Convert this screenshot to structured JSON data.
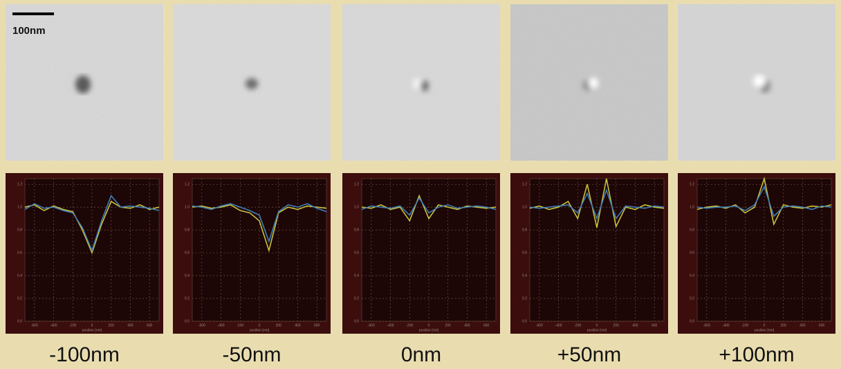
{
  "scale_bar": "100nm",
  "chart_data": [
    {
      "type": "line",
      "title": "-100nm",
      "xlabel": "position [nm]",
      "x": [
        -700,
        -600,
        -500,
        -400,
        -300,
        -200,
        -100,
        0,
        100,
        200,
        300,
        400,
        500,
        600,
        700
      ],
      "series": [
        {
          "color": "#c9c23a",
          "values": [
            1.0,
            1.02,
            0.97,
            1.01,
            0.98,
            0.96,
            0.8,
            0.6,
            0.85,
            1.05,
            1.0,
            0.99,
            1.02,
            0.98,
            1.0
          ]
        },
        {
          "color": "#3f7fb8",
          "values": [
            0.98,
            1.03,
            0.99,
            1.0,
            0.97,
            0.95,
            0.82,
            0.62,
            0.88,
            1.1,
            1.0,
            1.01,
            1.0,
            0.99,
            0.97
          ]
        }
      ],
      "xlim": [
        -700,
        700
      ],
      "ylim": [
        0,
        1.25
      ],
      "xticks": [
        -600,
        -400,
        -200,
        0,
        200,
        400,
        600
      ],
      "yticks": [
        {
          "value": 0,
          "label": "0.0"
        },
        0.2,
        0.4,
        0.6,
        0.8,
        {
          "value": 1,
          "label": "1.0"
        },
        1.2
      ],
      "grid": true
    },
    {
      "type": "line",
      "title": "-50nm",
      "xlabel": "position [nm]",
      "x": [
        -700,
        -600,
        -500,
        -400,
        -300,
        -200,
        -100,
        0,
        100,
        200,
        300,
        400,
        500,
        600,
        700
      ],
      "series": [
        {
          "color": "#c9c23a",
          "values": [
            1.0,
            1.01,
            0.99,
            1.0,
            1.02,
            0.97,
            0.95,
            0.88,
            0.62,
            0.95,
            1.0,
            0.98,
            1.01,
            1.0,
            0.99
          ]
        },
        {
          "color": "#3f7fb8",
          "values": [
            1.01,
            1.0,
            0.98,
            1.01,
            1.03,
            1.0,
            0.97,
            0.93,
            0.7,
            0.96,
            1.02,
            1.0,
            1.03,
            0.99,
            0.96
          ]
        }
      ],
      "xlim": [
        -700,
        700
      ],
      "ylim": [
        0,
        1.25
      ],
      "xticks": [
        -600,
        -400,
        -200,
        0,
        200,
        400,
        600
      ],
      "yticks": [
        {
          "value": 0,
          "label": "0.0"
        },
        0.2,
        0.4,
        0.6,
        0.8,
        {
          "value": 1,
          "label": "1.0"
        },
        1.2
      ],
      "grid": true
    },
    {
      "type": "line",
      "title": "0nm",
      "xlabel": "position [nm]",
      "x": [
        -700,
        -600,
        -500,
        -400,
        -300,
        -200,
        -100,
        0,
        100,
        200,
        300,
        400,
        500,
        600,
        700
      ],
      "series": [
        {
          "color": "#c9c23a",
          "values": [
            1.0,
            0.99,
            1.02,
            0.98,
            1.0,
            0.88,
            1.1,
            0.9,
            1.02,
            1.0,
            0.98,
            1.01,
            1.0,
            0.99,
            1.0
          ]
        },
        {
          "color": "#3f7fb8",
          "values": [
            0.98,
            1.01,
            1.0,
            0.99,
            1.01,
            0.93,
            1.08,
            0.95,
            1.0,
            1.02,
            0.99,
            1.0,
            1.01,
            1.0,
            0.98
          ]
        }
      ],
      "xlim": [
        -700,
        700
      ],
      "ylim": [
        0,
        1.25
      ],
      "xticks": [
        -600,
        -400,
        -200,
        0,
        200,
        400,
        600
      ],
      "yticks": [
        {
          "value": 0,
          "label": "0.0"
        },
        0.2,
        0.4,
        0.6,
        0.8,
        {
          "value": 1,
          "label": "1.0"
        },
        1.2
      ],
      "grid": true
    },
    {
      "type": "line",
      "title": "+50nm",
      "xlabel": "position [nm]",
      "x": [
        -700,
        -600,
        -500,
        -400,
        -300,
        -200,
        -100,
        0,
        100,
        200,
        300,
        400,
        500,
        600,
        700
      ],
      "series": [
        {
          "color": "#c9c23a",
          "values": [
            0.99,
            1.01,
            0.98,
            1.0,
            1.05,
            0.9,
            1.2,
            0.82,
            1.25,
            0.83,
            1.0,
            0.98,
            1.02,
            1.0,
            0.99
          ]
        },
        {
          "color": "#3f7fb8",
          "values": [
            1.0,
            0.99,
            1.0,
            1.01,
            1.02,
            0.95,
            1.12,
            0.9,
            1.15,
            0.9,
            1.01,
            1.0,
            0.99,
            1.01,
            1.0
          ]
        }
      ],
      "xlim": [
        -700,
        700
      ],
      "ylim": [
        0,
        1.25
      ],
      "xticks": [
        -600,
        -400,
        -200,
        0,
        200,
        400,
        600
      ],
      "yticks": [
        {
          "value": 0,
          "label": "0.0"
        },
        0.2,
        0.4,
        0.6,
        0.8,
        {
          "value": 1,
          "label": "1.0"
        },
        1.2
      ],
      "grid": true
    },
    {
      "type": "line",
      "title": "+100nm",
      "xlabel": "position [nm]",
      "x": [
        -700,
        -600,
        -500,
        -400,
        -300,
        -200,
        -100,
        0,
        100,
        200,
        300,
        400,
        500,
        600,
        700
      ],
      "series": [
        {
          "color": "#c9c23a",
          "values": [
            0.98,
            1.0,
            1.01,
            0.99,
            1.02,
            0.95,
            1.0,
            1.25,
            0.85,
            1.02,
            1.0,
            0.99,
            1.01,
            1.0,
            1.02
          ]
        },
        {
          "color": "#3f7fb8",
          "values": [
            1.0,
            0.99,
            1.0,
            1.0,
            1.01,
            0.97,
            1.02,
            1.18,
            0.92,
            1.0,
            1.01,
            1.0,
            0.98,
            1.01,
            1.0
          ]
        }
      ],
      "xlim": [
        -700,
        700
      ],
      "ylim": [
        0,
        1.25
      ],
      "xticks": [
        -600,
        -400,
        -200,
        0,
        200,
        400,
        600
      ],
      "yticks": [
        {
          "value": 0,
          "label": "0.0"
        },
        0.2,
        0.4,
        0.6,
        0.8,
        {
          "value": 1,
          "label": "1.0"
        },
        1.2
      ],
      "grid": true
    }
  ]
}
